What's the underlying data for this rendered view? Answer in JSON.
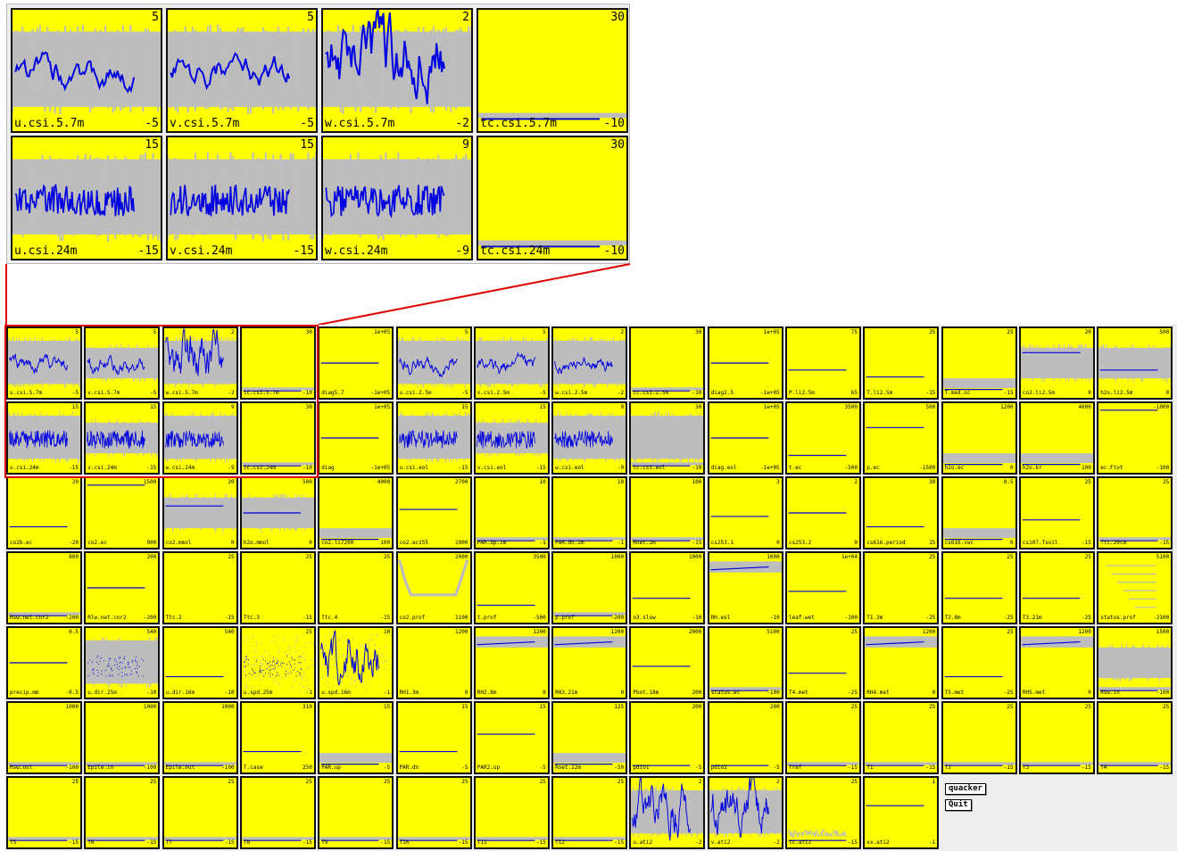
{
  "zoom": [
    {
      "name": "u.csi.5.7m",
      "hi": "5",
      "lo": "-5",
      "bg": "gray",
      "trace": "wave"
    },
    {
      "name": "v.csi.5.7m",
      "hi": "5",
      "lo": "-5",
      "bg": "gray",
      "trace": "wave"
    },
    {
      "name": "w.csi.5.7m",
      "hi": "2",
      "lo": "-2",
      "bg": "gray",
      "trace": "spiky"
    },
    {
      "name": "tc.csi.5.7m",
      "hi": "30",
      "lo": "-10",
      "bg": "plain",
      "trace": "low"
    },
    {
      "name": "u.csi.24m",
      "hi": "15",
      "lo": "-15",
      "bg": "gray",
      "trace": "noisy"
    },
    {
      "name": "v.csi.24m",
      "hi": "15",
      "lo": "-15",
      "bg": "gray",
      "trace": "noisy"
    },
    {
      "name": "w.csi.24m",
      "hi": "9",
      "lo": "-9",
      "bg": "gray",
      "trace": "noisy"
    },
    {
      "name": "tc.csi.24m",
      "hi": "30",
      "lo": "-10",
      "bg": "plain",
      "trace": "low"
    }
  ],
  "grid": [
    [
      {
        "name": "u.csi.5.7m",
        "hi": "5",
        "lo": "-5",
        "bg": "gray",
        "trace": "wave"
      },
      {
        "name": "v.csi.5.7m",
        "hi": "5",
        "lo": "-5",
        "bg": "yellowgray",
        "trace": "wave"
      },
      {
        "name": "w.csi.5.7m",
        "hi": "2",
        "lo": "-2",
        "bg": "gray",
        "trace": "spiky"
      },
      {
        "name": "tc.csi.5.7m",
        "hi": "30",
        "lo": "-10",
        "bg": "plain",
        "trace": "low"
      },
      {
        "name": "diag5.7",
        "hi": "1e+05",
        "lo": "-1e+05",
        "bg": "plain",
        "trace": "flat50"
      },
      {
        "name": "u.csi.2.5m",
        "hi": "5",
        "lo": "-5",
        "bg": "gray",
        "trace": "wave"
      },
      {
        "name": "v.csi.2.5m",
        "hi": "5",
        "lo": "-5",
        "bg": "gray",
        "trace": "wave"
      },
      {
        "name": "w.csi.2.5m",
        "hi": "2",
        "lo": "-2",
        "bg": "gray",
        "trace": "wave"
      },
      {
        "name": "tc.csi.2.5m",
        "hi": "30",
        "lo": "-10",
        "bg": "plain",
        "trace": "low"
      },
      {
        "name": "diag2.5",
        "hi": "1e+05",
        "lo": "-1e+05",
        "bg": "plain",
        "trace": "flat50"
      },
      {
        "name": "P.li2.5m",
        "hi": "75",
        "lo": "65",
        "bg": "plain",
        "trace": "flat60"
      },
      {
        "name": "T.li2.5m",
        "hi": "25",
        "lo": "-15",
        "bg": "plain",
        "trace": "flat70"
      },
      {
        "name": "T.med.oc",
        "hi": "25",
        "lo": "-15",
        "bg": "plain",
        "trace": "grayband"
      },
      {
        "name": "co2.li2.5m",
        "hi": "20",
        "lo": "0",
        "bg": "yellowgray",
        "trace": "flat35"
      },
      {
        "name": "h2o.li2.5m",
        "hi": "500",
        "lo": "0",
        "bg": "yellowgray",
        "trace": "flat60"
      }
    ],
    [
      {
        "name": "u.csi.24m",
        "hi": "15",
        "lo": "-15",
        "bg": "gray",
        "trace": "noisy"
      },
      {
        "name": "v.csi.24m",
        "hi": "15",
        "lo": "-15",
        "bg": "yellowgray",
        "trace": "noisy"
      },
      {
        "name": "w.csi.24m",
        "hi": "9",
        "lo": "-9",
        "bg": "gray",
        "trace": "noisy"
      },
      {
        "name": "tc.csi.24m",
        "hi": "30",
        "lo": "-10",
        "bg": "plain",
        "trace": "low"
      },
      {
        "name": "diag",
        "hi": "1e+05",
        "lo": "-1e+05",
        "bg": "plain",
        "trace": "flat50"
      },
      {
        "name": "u.csi.eol",
        "hi": "15",
        "lo": "-15",
        "bg": "gray",
        "trace": "noisy"
      },
      {
        "name": "v.csi.eol",
        "hi": "15",
        "lo": "-15",
        "bg": "yellowgray",
        "trace": "noisy"
      },
      {
        "name": "w.csi.eol",
        "hi": "9",
        "lo": "-9",
        "bg": "gray",
        "trace": "noisy"
      },
      {
        "name": "tc.csi.eol",
        "hi": "30",
        "lo": "-10",
        "bg": "gray",
        "trace": "low"
      },
      {
        "name": "diag.eol",
        "hi": "1e+05",
        "lo": "-1e+05",
        "bg": "plain",
        "trace": "flat50"
      },
      {
        "name": "t.ec",
        "hi": "3500",
        "lo": "-500",
        "bg": "plain",
        "trace": "flat75"
      },
      {
        "name": "p.ec",
        "hi": "500",
        "lo": "-1500",
        "bg": "plain",
        "trace": "flat35"
      },
      {
        "name": "h2o.ec",
        "hi": "1200",
        "lo": "0",
        "bg": "plain",
        "trace": "grayband"
      },
      {
        "name": "h2o.kr",
        "hi": "4000",
        "lo": "100",
        "bg": "plain",
        "trace": "grayband"
      },
      {
        "name": "ec.Ftot",
        "hi": "-1000",
        "lo": "-100",
        "bg": "plain",
        "trace": "top"
      }
    ],
    [
      {
        "name": "co2b.ec",
        "hi": "20",
        "lo": "-20",
        "bg": "plain",
        "trace": "flat70"
      },
      {
        "name": "co2.ec",
        "hi": "1500",
        "lo": "900",
        "bg": "plain",
        "trace": "top"
      },
      {
        "name": "co2.mmol",
        "hi": "20",
        "lo": "0",
        "bg": "yellowgray",
        "trace": "flat40"
      },
      {
        "name": "h2o.mmol",
        "hi": "500",
        "lo": "0",
        "bg": "yellowgray",
        "trace": "flat50"
      },
      {
        "name": "co2.li7200",
        "hi": "4000",
        "lo": "100",
        "bg": "plain",
        "trace": "grayband"
      },
      {
        "name": "co2.ec155",
        "hi": "2700",
        "lo": "1900",
        "bg": "plain",
        "trace": "flat45"
      },
      {
        "name": "PAR.up.2m",
        "hi": "10",
        "lo": "-1",
        "bg": "plain",
        "trace": "low"
      },
      {
        "name": "PAR.dn.2m",
        "hi": "10",
        "lo": "-1",
        "bg": "plain",
        "trace": "low"
      },
      {
        "name": "Rnet.2m",
        "hi": "100",
        "lo": "-15",
        "bg": "plain",
        "trace": "low"
      },
      {
        "name": "cs253.1",
        "hi": "3",
        "lo": "0",
        "bg": "plain",
        "trace": "flat55"
      },
      {
        "name": "cs253.2",
        "hi": "2",
        "lo": "0",
        "bg": "plain",
        "trace": "flat50"
      },
      {
        "name": "cs616.period",
        "hi": "30",
        "lo": "15",
        "bg": "plain",
        "trace": "flat70"
      },
      {
        "name": "cs616.vwc",
        "hi": "0.5",
        "lo": "0",
        "bg": "plain",
        "trace": "grayband"
      },
      {
        "name": "cs107.Tsoil",
        "hi": "25",
        "lo": "-15",
        "bg": "plain",
        "trace": "flat60"
      },
      {
        "name": "Ttc.20cm",
        "hi": "25",
        "lo": "-15",
        "bg": "plain",
        "trace": "low"
      }
    ],
    [
      {
        "name": "Rsw.net.cnr2",
        "hi": "800",
        "lo": "-200",
        "bg": "plain",
        "trace": "low"
      },
      {
        "name": "Rlw.net.cnr2",
        "hi": "200",
        "lo": "-200",
        "bg": "plain",
        "trace": "flat50"
      },
      {
        "name": "Ttc.2",
        "hi": "25",
        "lo": "-15",
        "bg": "plain",
        "trace": "none"
      },
      {
        "name": "Ttc.3",
        "hi": "25",
        "lo": "-15",
        "bg": "plain",
        "trace": "none"
      },
      {
        "name": "Ttc.4",
        "hi": "25",
        "lo": "-15",
        "bg": "plain",
        "trace": "none"
      },
      {
        "name": "co2.prof",
        "hi": "2000",
        "lo": "1100",
        "bg": "plain",
        "trace": "prof"
      },
      {
        "name": "t.prof",
        "hi": "3500",
        "lo": "-500",
        "bg": "plain",
        "trace": "flat75"
      },
      {
        "name": "p.prof",
        "hi": "1000",
        "lo": "-200",
        "bg": "plain",
        "trace": "low"
      },
      {
        "name": "o3.slow",
        "hi": "1000",
        "lo": "-10",
        "bg": "plain",
        "trace": "flat65"
      },
      {
        "name": "RH.eol",
        "hi": "1000",
        "lo": "-10",
        "bg": "plain",
        "trace": "hiband"
      },
      {
        "name": "leaf.wet",
        "hi": "1e+04",
        "lo": "-100",
        "bg": "plain",
        "trace": "flat55"
      },
      {
        "name": "T1.3m",
        "hi": "25",
        "lo": "-25",
        "bg": "plain",
        "trace": "none"
      },
      {
        "name": "T2.8m",
        "hi": "25",
        "lo": "-25",
        "bg": "plain",
        "trace": "flat65"
      },
      {
        "name": "T3.21m",
        "hi": "25",
        "lo": "-25",
        "bg": "plain",
        "trace": "flat65"
      },
      {
        "name": "status.prof",
        "hi": "5100",
        "lo": "-2100",
        "bg": "plain",
        "trace": "steps"
      }
    ],
    [
      {
        "name": "precip.mm",
        "hi": "0.5",
        "lo": "-0.5",
        "bg": "plain",
        "trace": "flat50"
      },
      {
        "name": "u.dir.25m",
        "hi": "540",
        "lo": "-10",
        "bg": "gray",
        "trace": "scatter"
      },
      {
        "name": "u.dir.16m",
        "hi": "540",
        "lo": "-10",
        "bg": "plain",
        "trace": "flat70"
      },
      {
        "name": "u.spd.25m",
        "hi": "25",
        "lo": "-1",
        "bg": "grayscatter",
        "trace": "scatter"
      },
      {
        "name": "u.spd.16m",
        "hi": "10",
        "lo": "-1",
        "bg": "grayscatter",
        "trace": "spiky"
      },
      {
        "name": "RH1.3m",
        "hi": "1200",
        "lo": "0",
        "bg": "plain",
        "trace": "none"
      },
      {
        "name": "RH2.8m",
        "hi": "1200",
        "lo": "0",
        "bg": "plain",
        "trace": "hiband"
      },
      {
        "name": "RH3.21m",
        "hi": "1200",
        "lo": "0",
        "bg": "plain",
        "trace": "hiband"
      },
      {
        "name": "Pbot.18m",
        "hi": "2000",
        "lo": "200",
        "bg": "plain",
        "trace": "flat55"
      },
      {
        "name": "status.ec",
        "hi": "5100",
        "lo": "-100",
        "bg": "plain",
        "trace": "low"
      },
      {
        "name": "T4.met",
        "hi": "25",
        "lo": "-25",
        "bg": "plain",
        "trace": "flat65"
      },
      {
        "name": "RH4.met",
        "hi": "1200",
        "lo": "0",
        "bg": "plain",
        "trace": "hiband"
      },
      {
        "name": "T5.met",
        "hi": "25",
        "lo": "-25",
        "bg": "plain",
        "trace": "flat70"
      },
      {
        "name": "RH5.met",
        "hi": "1200",
        "lo": "0",
        "bg": "plain",
        "trace": "hiband"
      },
      {
        "name": "Rsw.in",
        "hi": "1500",
        "lo": "-100",
        "bg": "yellowgray",
        "trace": "low"
      }
    ],
    [
      {
        "name": "Rsw.out",
        "hi": "1000",
        "lo": "-100",
        "bg": "plain",
        "trace": "low"
      },
      {
        "name": "Epile.in",
        "hi": "1000",
        "lo": "-100",
        "bg": "plain",
        "trace": "low"
      },
      {
        "name": "Epile.out",
        "hi": "1000",
        "lo": "-100",
        "bg": "plain",
        "trace": "low"
      },
      {
        "name": "T.case",
        "hi": "310",
        "lo": "250",
        "bg": "plain",
        "trace": "flat70"
      },
      {
        "name": "PAR.up",
        "hi": "15",
        "lo": "-5",
        "bg": "plain",
        "trace": "grayband"
      },
      {
        "name": "PAR.dn",
        "hi": "15",
        "lo": "-5",
        "bg": "plain",
        "trace": "flat70"
      },
      {
        "name": "PAR2.up",
        "hi": "15",
        "lo": "-5",
        "bg": "plain",
        "trace": "flat45"
      },
      {
        "name": "Rnet.22m",
        "hi": "125",
        "lo": "-50",
        "bg": "plain",
        "trace": "grayband"
      },
      {
        "name": "pdio1",
        "hi": "200",
        "lo": "-5",
        "bg": "plain",
        "trace": "flat90"
      },
      {
        "name": "pdio2",
        "hi": "200",
        "lo": "-5",
        "bg": "plain",
        "trace": "flat90"
      },
      {
        "name": "Tref",
        "hi": "25",
        "lo": "-15",
        "bg": "plain",
        "trace": "low"
      },
      {
        "name": "T1",
        "hi": "25",
        "lo": "-15",
        "bg": "plain",
        "trace": "low"
      },
      {
        "name": "T2",
        "hi": "25",
        "lo": "-15",
        "bg": "plain",
        "trace": "low"
      },
      {
        "name": "T3",
        "hi": "25",
        "lo": "-15",
        "bg": "plain",
        "trace": "low"
      },
      {
        "name": "T4",
        "hi": "25",
        "lo": "-15",
        "bg": "plain",
        "trace": "low"
      }
    ],
    [
      {
        "name": "T5",
        "hi": "25",
        "lo": "-15",
        "bg": "plain",
        "trace": "low"
      },
      {
        "name": "T6",
        "hi": "25",
        "lo": "-15",
        "bg": "plain",
        "trace": "low"
      },
      {
        "name": "T7",
        "hi": "25",
        "lo": "-15",
        "bg": "plain",
        "trace": "low"
      },
      {
        "name": "T8",
        "hi": "25",
        "lo": "-15",
        "bg": "plain",
        "trace": "low"
      },
      {
        "name": "T9",
        "hi": "25",
        "lo": "-15",
        "bg": "plain",
        "trace": "low"
      },
      {
        "name": "T10",
        "hi": "25",
        "lo": "-15",
        "bg": "plain",
        "trace": "low"
      },
      {
        "name": "T11",
        "hi": "25",
        "lo": "-15",
        "bg": "plain",
        "trace": "low"
      },
      {
        "name": "T12",
        "hi": "25",
        "lo": "-15",
        "bg": "plain",
        "trace": "low"
      },
      {
        "name": "u.ati2",
        "hi": "2",
        "lo": "-2",
        "bg": "gray",
        "trace": "spiky"
      },
      {
        "name": "v.ati2",
        "hi": "2",
        "lo": "-2",
        "bg": "gray",
        "trace": "spiky"
      },
      {
        "name": "tc.ati2",
        "hi": "25",
        "lo": "-15",
        "bg": "plain",
        "trace": "spikeylow"
      },
      {
        "name": "xx.ati2",
        "hi": "1",
        "lo": "-1",
        "bg": "plain",
        "trace": "flat40"
      }
    ]
  ],
  "buttons": {
    "quacker": "quacker",
    "quit": "Quit"
  },
  "colors": {
    "panel": "#ffff00",
    "gray": "#bdbdbd",
    "trace": "#0000e0",
    "highlight": "#e00000"
  }
}
